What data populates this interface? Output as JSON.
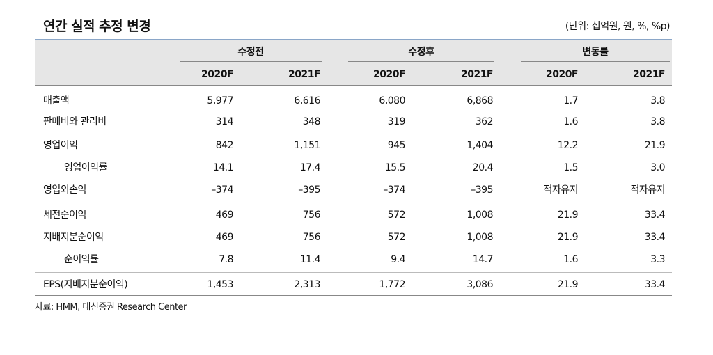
{
  "header": {
    "title": "연간 실적 추정 변경",
    "unit": "(단위: 십억원, 원, %, %p)"
  },
  "table": {
    "groups": [
      "수정전",
      "수정후",
      "변동률"
    ],
    "years": [
      "2020F",
      "2021F",
      "2020F",
      "2021F",
      "2020F",
      "2021F"
    ],
    "rows": [
      [
        "매출액",
        "5,977",
        "6,616",
        "6,080",
        "6,868",
        "1.7",
        "3.8"
      ],
      [
        "판매비와 관리비",
        "314",
        "348",
        "319",
        "362",
        "1.6",
        "3.8"
      ],
      [
        "영업이익",
        "842",
        "1,151",
        "945",
        "1,404",
        "12.2",
        "21.9"
      ],
      [
        "영업이익률",
        "14.1",
        "17.4",
        "15.5",
        "20.4",
        "1.5",
        "3.0"
      ],
      [
        "영업외손익",
        "–374",
        "–395",
        "–374",
        "–395",
        "적자유지",
        "적자유지"
      ],
      [
        "세전순이익",
        "469",
        "756",
        "572",
        "1,008",
        "21.9",
        "33.4"
      ],
      [
        "지배지분순이익",
        "469",
        "756",
        "572",
        "1,008",
        "21.9",
        "33.4"
      ],
      [
        "순이익률",
        "7.8",
        "11.4",
        "9.4",
        "14.7",
        "1.6",
        "3.3"
      ],
      [
        "EPS(지배지분순이익)",
        "1,453",
        "2,313",
        "1,772",
        "3,086",
        "21.9",
        "33.4"
      ]
    ]
  },
  "source": "자료: HMM, 대신증권 Research Center"
}
